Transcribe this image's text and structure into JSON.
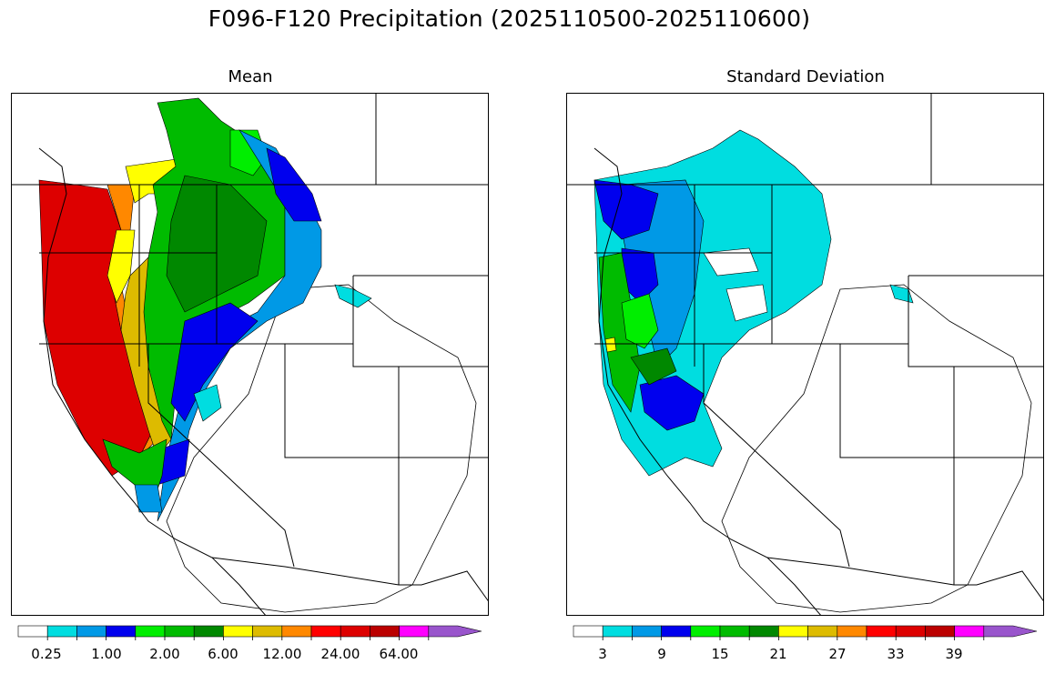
{
  "figure": {
    "title": "F096-F120 Precipitation (2025110500-2025110600)"
  },
  "panels": [
    {
      "id": "mean",
      "title": "Mean",
      "colorbar": {
        "colors": [
          "#ffffff",
          "#00dde0",
          "#0099e6",
          "#0000ee",
          "#00ee00",
          "#00bb00",
          "#008800",
          "#ffff00",
          "#ddbb00",
          "#ff8800",
          "#ff0000",
          "#dd0000",
          "#bb0000",
          "#ff00ff",
          "#9955cc"
        ],
        "tick_labels": [
          "0.25",
          "1.00",
          "2.00",
          "6.00",
          "12.00",
          "24.00",
          "64.00"
        ],
        "extend": "max"
      }
    },
    {
      "id": "stddev",
      "title": "Standard Deviation",
      "colorbar": {
        "colors": [
          "#ffffff",
          "#00dde0",
          "#0099e6",
          "#0000ee",
          "#00ee00",
          "#00bb00",
          "#008800",
          "#ffff00",
          "#ddbb00",
          "#ff8800",
          "#ff0000",
          "#dd0000",
          "#bb0000",
          "#ff00ff",
          "#9955cc"
        ],
        "tick_labels": [
          "3",
          "9",
          "15",
          "21",
          "27",
          "33",
          "39"
        ],
        "extend": "max"
      }
    }
  ]
}
